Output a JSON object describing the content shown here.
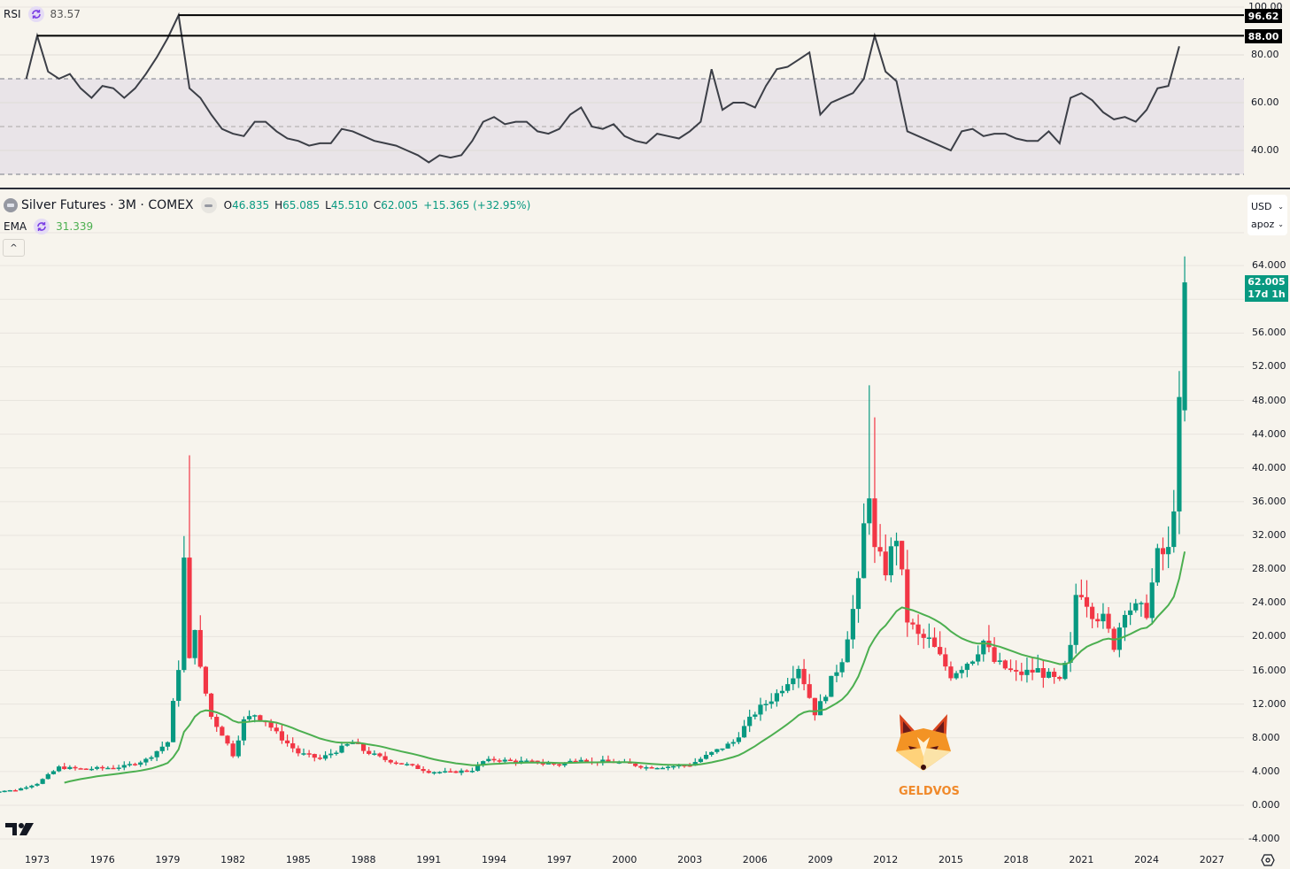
{
  "rsi_pane": {
    "label": "RSI",
    "value": "83.57",
    "axis_ticks": [
      "100.00",
      "80.00",
      "60.00",
      "40.00"
    ],
    "annotations": [
      {
        "label": "96.62",
        "value": 96.62
      },
      {
        "label": "88.00",
        "value": 88.0
      }
    ],
    "band": {
      "upper": 70,
      "middle": 50,
      "lower": 30
    }
  },
  "main_pane": {
    "symbol_title": "Silver Futures · 3M · COMEX",
    "ohlc": {
      "o_label": "O",
      "o": "46.835",
      "h_label": "H",
      "h": "65.085",
      "l_label": "L",
      "l": "45.510",
      "c_label": "C",
      "c": "62.005",
      "change": "+15.365 (+32.95%)"
    },
    "ema_label": "EMA",
    "ema_value": "31.339",
    "collapse_glyph": "^",
    "currency": "USD",
    "unit": "apoz",
    "last_price": "62.005",
    "countdown": "17d 1h",
    "price_ticks": [
      "64.000",
      "56.000",
      "52.000",
      "48.000",
      "44.000",
      "40.000",
      "36.000",
      "32.000",
      "28.000",
      "24.000",
      "20.000",
      "16.000",
      "12.000",
      "8.000",
      "4.000",
      "0.000",
      "-4.000"
    ],
    "years": [
      "1973",
      "1976",
      "1979",
      "1982",
      "1985",
      "1988",
      "1991",
      "1994",
      "1997",
      "2000",
      "2003",
      "2006",
      "2009",
      "2012",
      "2015",
      "2018",
      "2021",
      "2024",
      "2027"
    ],
    "watermark": "GELDVOS"
  },
  "colors": {
    "background": "#f7f4ed",
    "up": "#089981",
    "down": "#f23645",
    "ema": "#4caf50",
    "rsi_line": "#3c3f47",
    "rsi_band": "#e9e4e8",
    "watermark": "#f0892a"
  },
  "chart_data": [
    {
      "type": "line",
      "title": "RSI",
      "ylim": [
        30,
        100
      ],
      "x": [
        1972.5,
        1973.0,
        1973.5,
        1974.0,
        1974.5,
        1975.0,
        1975.5,
        1976.0,
        1976.5,
        1977.0,
        1977.5,
        1978.0,
        1978.5,
        1979.0,
        1979.5,
        1980.0,
        1980.5,
        1981.0,
        1981.5,
        1982.0,
        1982.5,
        1983.0,
        1983.5,
        1984.0,
        1984.5,
        1985.0,
        1985.5,
        1986.0,
        1986.5,
        1987.0,
        1987.5,
        1988.0,
        1988.5,
        1989.0,
        1989.5,
        1990.0,
        1990.5,
        1991.0,
        1991.5,
        1992.0,
        1992.5,
        1993.0,
        1993.5,
        1994.0,
        1994.5,
        1995.0,
        1995.5,
        1996.0,
        1996.5,
        1997.0,
        1997.5,
        1998.0,
        1998.5,
        1999.0,
        1999.5,
        2000.0,
        2000.5,
        2001.0,
        2001.5,
        2002.0,
        2002.5,
        2003.0,
        2003.5,
        2004.0,
        2004.5,
        2005.0,
        2005.5,
        2006.0,
        2006.5,
        2007.0,
        2007.5,
        2008.0,
        2008.5,
        2009.0,
        2009.5,
        2010.0,
        2010.5,
        2011.0,
        2011.5,
        2012.0,
        2012.5,
        2013.0,
        2013.5,
        2014.0,
        2014.5,
        2015.0,
        2015.5,
        2016.0,
        2016.5,
        2017.0,
        2017.5,
        2018.0,
        2018.5,
        2019.0,
        2019.5,
        2020.0,
        2020.5,
        2021.0,
        2021.5,
        2022.0,
        2022.5,
        2023.0,
        2023.5,
        2024.0,
        2024.5,
        2025.0,
        2025.5
      ],
      "values": [
        70,
        88,
        73,
        70,
        72,
        66,
        62,
        67,
        66,
        62,
        66,
        72,
        79,
        87,
        96.6,
        66,
        62,
        55,
        49,
        47,
        46,
        52,
        52,
        48,
        45,
        44,
        42,
        43,
        43,
        49,
        48,
        46,
        44,
        43,
        42,
        40,
        38,
        35,
        38,
        37,
        38,
        44,
        52,
        54,
        51,
        52,
        52,
        48,
        47,
        49,
        55,
        58,
        50,
        49,
        51,
        46,
        44,
        43,
        47,
        46,
        45,
        48,
        52,
        74,
        57,
        60,
        60,
        58,
        67,
        74,
        75,
        78,
        81,
        55,
        60,
        62,
        64,
        70,
        88,
        73,
        69,
        48,
        46,
        44,
        42,
        40,
        48,
        49,
        46,
        47,
        47,
        45,
        44,
        44,
        48,
        43,
        62,
        64,
        61,
        56,
        53,
        54,
        52,
        57,
        66,
        67,
        83.6
      ]
    },
    {
      "type": "candlestick",
      "title": "Silver Futures · 3M · COMEX",
      "ylim": [
        -4,
        66
      ],
      "ylabel": "USD / apoz",
      "last": {
        "open": 46.835,
        "high": 65.085,
        "low": 45.51,
        "close": 62.005,
        "change": 15.365,
        "change_pct": 32.95
      },
      "ema_last": 31.339,
      "key_points": [
        {
          "date": "1980Q1",
          "high": 41.5,
          "close_approx": 29
        },
        {
          "date": "2011Q2",
          "high": 49.8,
          "close_approx": 37
        },
        {
          "date": "2025Q4",
          "high": 65.085,
          "close": 62.005
        }
      ],
      "approx_close_by_year": {
        "1973": 2.6,
        "1974": 4.5,
        "1976": 4.4,
        "1978": 5.4,
        "1979": 13,
        "1980": 16,
        "1981": 8.5,
        "1982": 10.5,
        "1983": 9.0,
        "1985": 6.0,
        "1987": 7.0,
        "1990": 4.2,
        "1993": 4.8,
        "1997": 5.9,
        "2000": 4.9,
        "2003": 5.0,
        "2006": 12.0,
        "2008": 10.5,
        "2010": 26,
        "2011": 31,
        "2012": 30,
        "2013": 19.5,
        "2015": 14,
        "2016": 17,
        "2018": 14.5,
        "2019": 16.5,
        "2020": 25,
        "2021": 23,
        "2022": 20,
        "2023": 23,
        "2024": 29,
        "2025": 62
      }
    }
  ]
}
